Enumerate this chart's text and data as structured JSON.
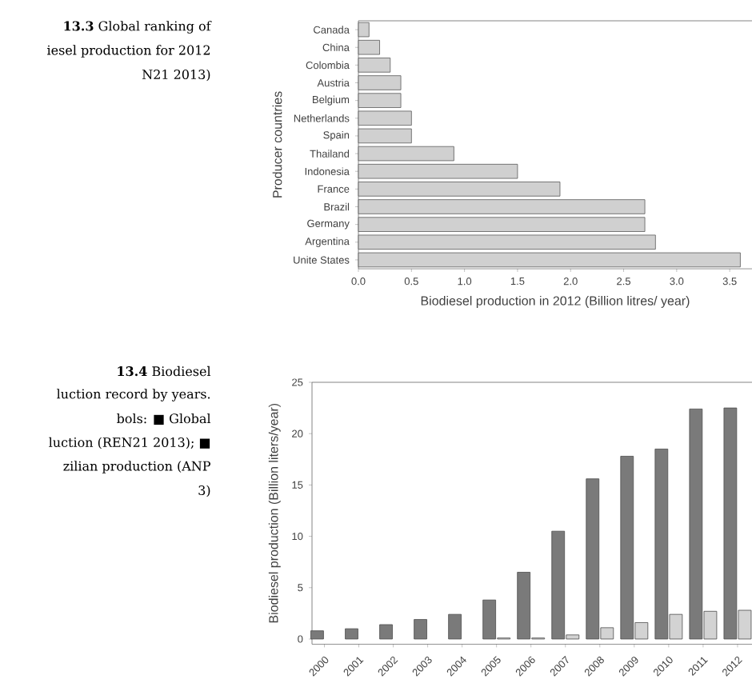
{
  "chart_data": [
    {
      "type": "bar",
      "orientation": "horizontal",
      "categories": [
        "Canada",
        "China",
        "Colombia",
        "Austria",
        "Belgium",
        "Netherlands",
        "Spain",
        "Thailand",
        "Indonesia",
        "France",
        "Brazil",
        "Germany",
        "Argentina",
        "Unite States"
      ],
      "values": [
        0.1,
        0.2,
        0.3,
        0.4,
        0.4,
        0.5,
        0.5,
        0.9,
        1.5,
        1.9,
        2.7,
        2.7,
        2.8,
        3.6
      ],
      "color": "#d0d0d0",
      "xlim": [
        0,
        3.71
      ],
      "xticks": [
        {
          "value": 0,
          "label": "0.0"
        },
        {
          "value": 0.5,
          "label": "0.5"
        },
        {
          "value": 1,
          "label": "1.0"
        },
        {
          "value": 1.5,
          "label": "1.5"
        },
        {
          "value": 2,
          "label": "2.0"
        },
        {
          "value": 2.5,
          "label": "2.5"
        },
        {
          "value": 3,
          "label": "3.0"
        },
        {
          "value": 3.5,
          "label": "3.5"
        }
      ],
      "xlabel": "Biodiesel production in 2012 (Billion litres/ year)",
      "ylabel": "Producer countries",
      "annotations": [
        "**13.3** Global ranking of",
        "iesel production for 2012",
        "N21 2013)"
      ]
    },
    {
      "type": "bar",
      "categories": [
        "2000",
        "2001",
        "2002",
        "2003",
        "2004",
        "2005",
        "2006",
        "2007",
        "2008",
        "2009",
        "2010",
        "2011",
        "2012"
      ],
      "series": [
        {
          "color": "#7a7a7a",
          "values": [
            0.8,
            1.0,
            1.4,
            1.9,
            2.4,
            3.8,
            6.5,
            10.5,
            15.6,
            17.8,
            18.5,
            22.4,
            22.5
          ]
        },
        {
          "color": "#d3d3d3",
          "values": [
            null,
            null,
            null,
            null,
            null,
            0.1,
            0.1,
            0.4,
            1.1,
            1.6,
            2.4,
            2.7,
            2.8
          ]
        }
      ],
      "ylim": [
        -0.5,
        25
      ],
      "yticks": [
        0,
        5,
        10,
        15,
        20,
        25
      ],
      "ylabel": "Biodiesel production (Billion liters/year)",
      "annotations": [
        "**13.4** Biodiesel",
        "luction record by years.",
        "bols: ■ Global",
        "luction (REN21 2013); ■",
        "zilian production (ANP",
        "3)"
      ]
    }
  ]
}
